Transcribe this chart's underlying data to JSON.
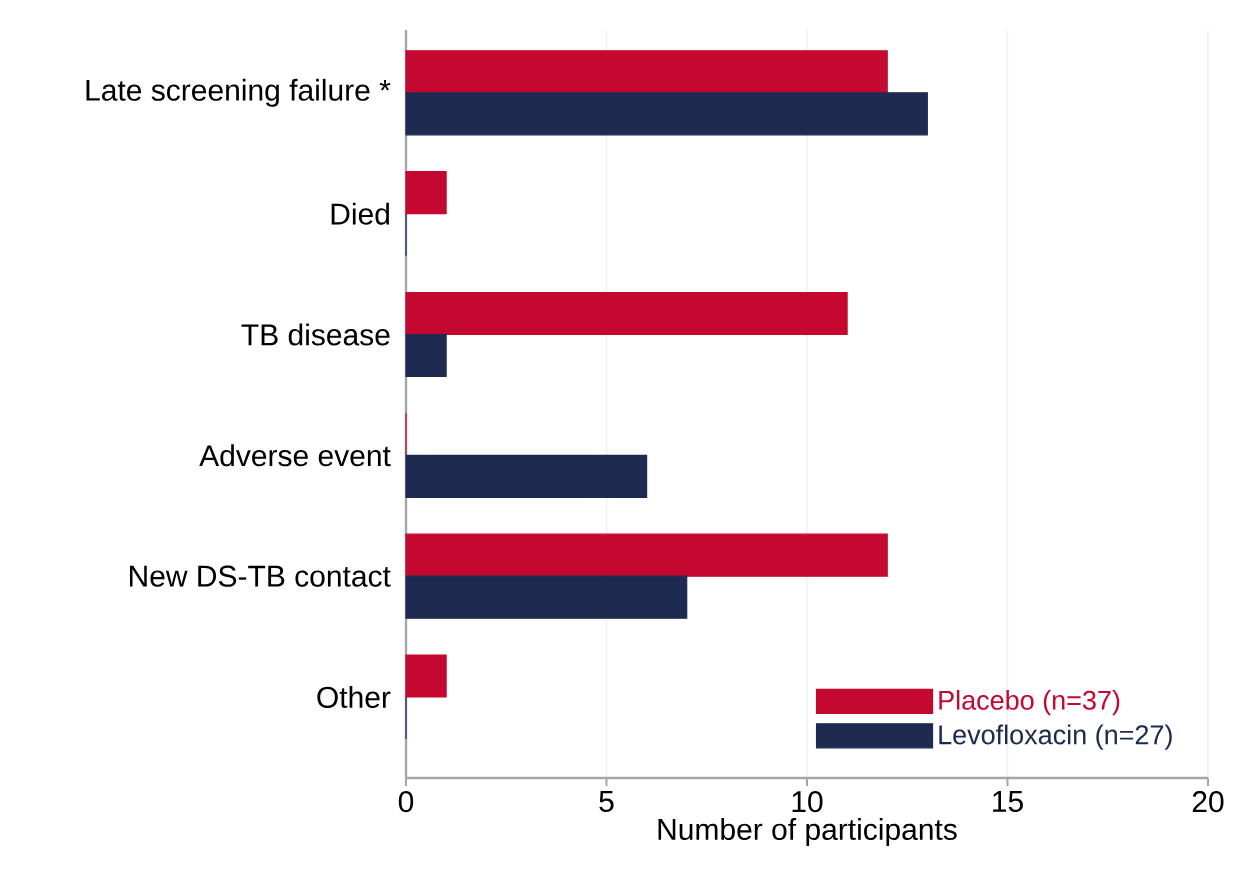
{
  "chart_data": {
    "type": "bar",
    "orientation": "horizontal",
    "xlabel": "Number of participants",
    "categories": [
      "Late screening failure *",
      "Died",
      "TB disease",
      "Adverse event",
      "New DS-TB contact",
      "Other"
    ],
    "series": [
      {
        "name": "Placebo (n=37)",
        "color": "#c4082f",
        "values": [
          12,
          1,
          11,
          0,
          12,
          1
        ]
      },
      {
        "name": "Levofloxacin (n=27)",
        "color": "#1e2a4f",
        "values": [
          13,
          0,
          1,
          6,
          7,
          0
        ]
      }
    ],
    "xlim": [
      0,
      20
    ],
    "xticks": [
      0,
      5,
      10,
      15,
      20
    ],
    "grid": "x",
    "legend": "bottom right"
  }
}
